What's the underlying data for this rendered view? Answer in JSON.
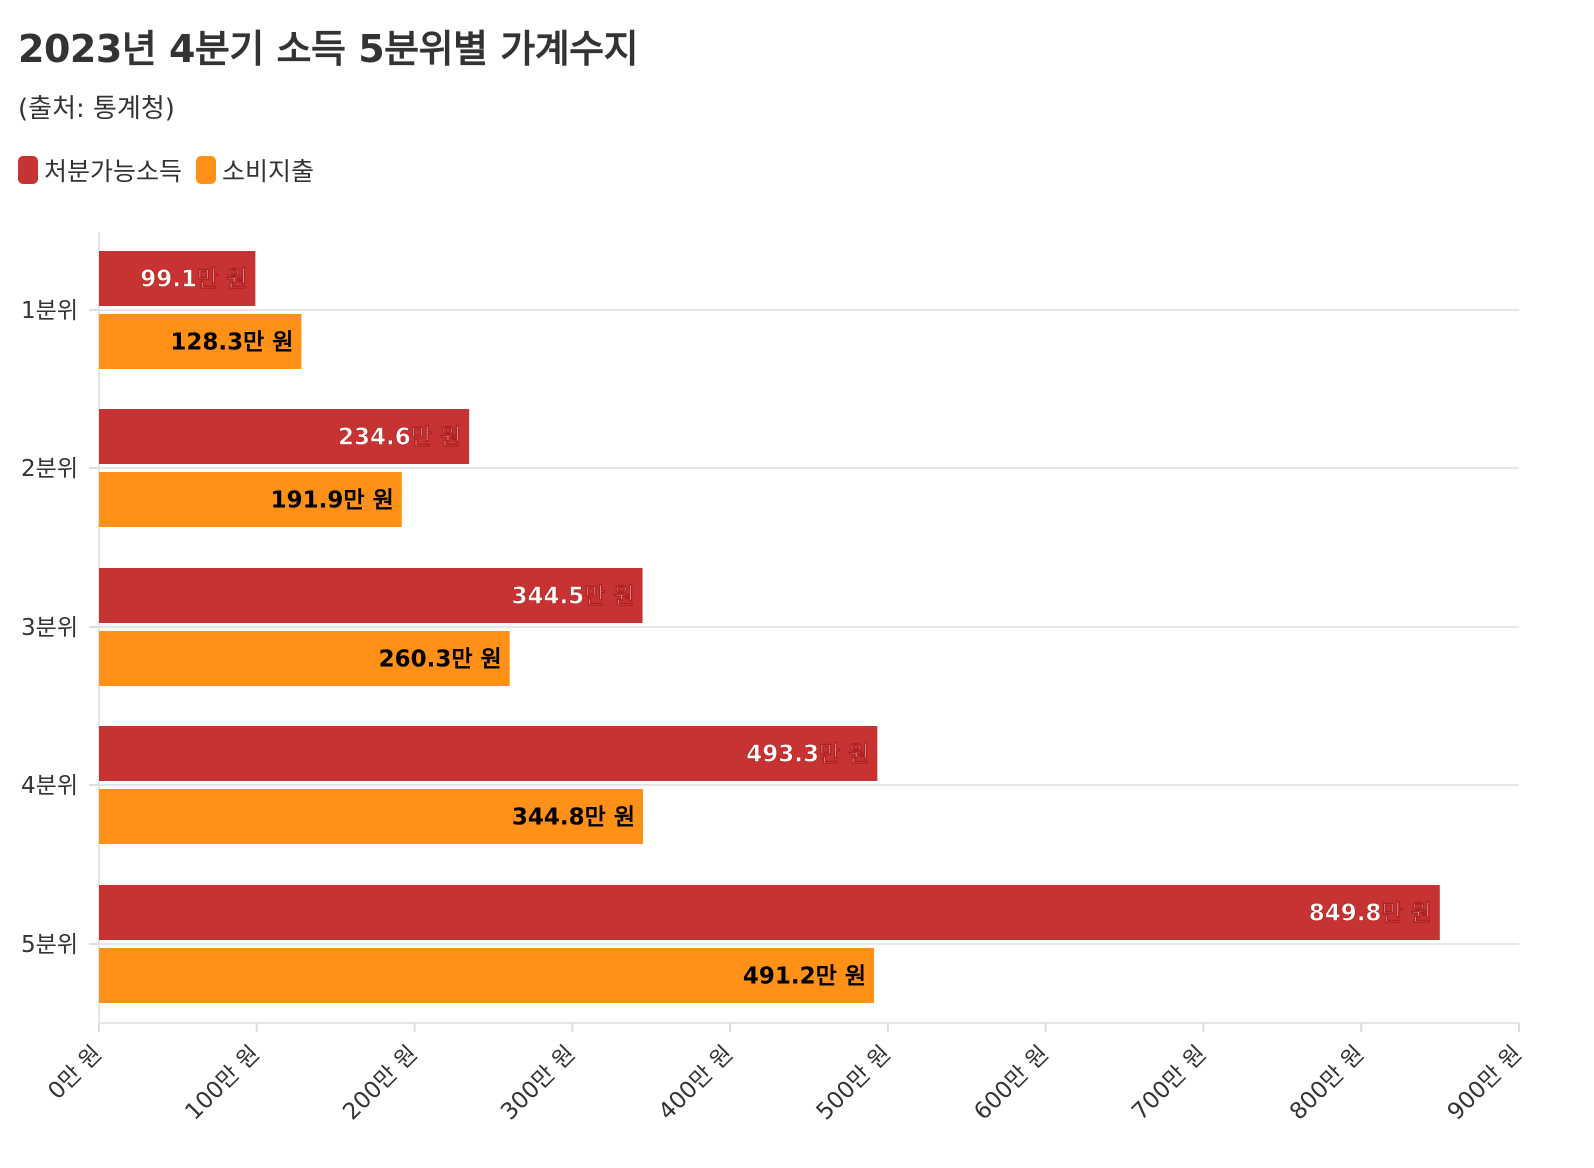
{
  "chart_data": {
    "type": "bar",
    "orientation": "horizontal",
    "title": "2023년 4분기 소득 5분위별 가계수지",
    "subtitle": "(출처: 통계청)",
    "categories": [
      "1분위",
      "2분위",
      "3분위",
      "4분위",
      "5분위"
    ],
    "series": [
      {
        "name": "처분가능소득",
        "color": "#c73232",
        "label_color": "#ffffff",
        "values": [
          99.1,
          234.6,
          344.5,
          493.3,
          849.8
        ],
        "labels": [
          "99.1만 원",
          "234.6만 원",
          "344.5만 원",
          "493.3만 원",
          "849.8만 원"
        ]
      },
      {
        "name": "소비지출",
        "color": "#ff9018",
        "label_color": "#000000",
        "values": [
          128.3,
          191.9,
          260.3,
          344.8,
          491.2
        ],
        "labels": [
          "128.3만 원",
          "191.9만 원",
          "260.3만 원",
          "344.8만 원",
          "491.2만 원"
        ]
      }
    ],
    "xlim": [
      0,
      900
    ],
    "xticks": [
      0,
      100,
      200,
      300,
      400,
      500,
      600,
      700,
      800,
      900
    ],
    "xtick_labels": [
      "0만 원",
      "100만 원",
      "200만 원",
      "300만 원",
      "400만 원",
      "500만 원",
      "600만 원",
      "700만 원",
      "800만 원",
      "900만 원"
    ],
    "xlabel": "",
    "ylabel": "",
    "legend_position": "top-left",
    "grid": true
  }
}
